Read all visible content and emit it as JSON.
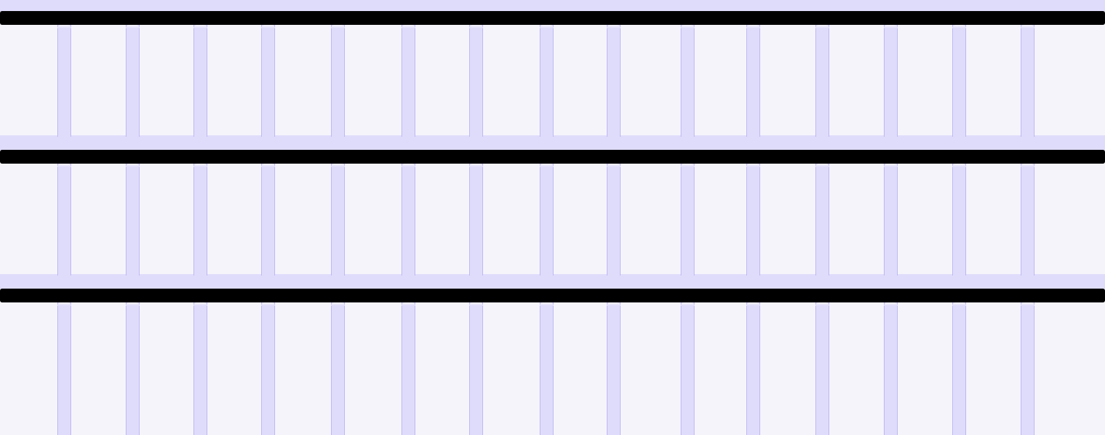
{
  "colors": {
    "background": "#f5f4fb",
    "band": "#dfdcfb",
    "rail": "#000000"
  },
  "structure": {
    "rail_count": 3,
    "posts_per_row": 15
  }
}
